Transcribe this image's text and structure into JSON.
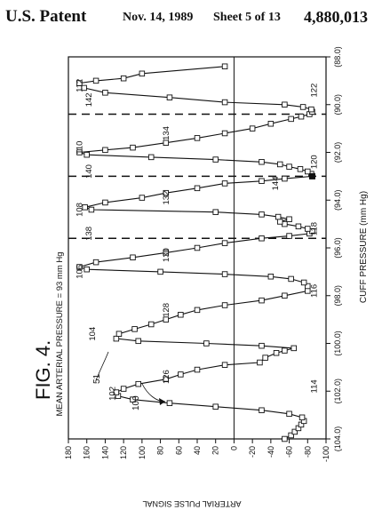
{
  "header": {
    "patent_label": "U.S. Patent",
    "date": "Nov. 14, 1989",
    "sheet": "Sheet 5 of 13",
    "patent_number": "4,880,013"
  },
  "figure": {
    "label": "FIG. 4.",
    "mean_pressure_label": "MEAN ARTERIAL PRESSURE = 93 mm Hg",
    "ref_51": "51",
    "ref_100": "100"
  },
  "chart_data": {
    "type": "line",
    "xlabel": "CUFF PRESSURE (mm Hg)",
    "ylabel": "ARTERIAL PULSE SIGNAL",
    "x_ticks": [
      "(104.0)",
      "(102.0)",
      "(100.0)",
      "(98.0)",
      "(96.0)",
      "(94.0)",
      "(92.0)",
      "(90.0)",
      "(88.0)"
    ],
    "x_tick_values": [
      104,
      102,
      100,
      98,
      96,
      94,
      92,
      90,
      88
    ],
    "y_ticks": [
      "180",
      "160",
      "140",
      "120",
      "100",
      "80",
      "60",
      "40",
      "20",
      "0",
      "-20",
      "-40",
      "-60",
      "-80",
      "-100"
    ],
    "y_tick_values": [
      180,
      160,
      140,
      120,
      100,
      80,
      60,
      40,
      20,
      0,
      -20,
      -40,
      -60,
      -80,
      -100
    ],
    "xlim": [
      104,
      88
    ],
    "ylim": [
      -100,
      180
    ],
    "dashed_lines_x": [
      95.6,
      93.0,
      90.4
    ],
    "annotations": [
      {
        "label": "102",
        "x": 102.1,
        "y": 132
      },
      {
        "label": "126",
        "x": 101.4,
        "y": 74
      },
      {
        "label": "114",
        "x": 101.8,
        "y": -87
      },
      {
        "label": "104",
        "x": 99.6,
        "y": 154
      },
      {
        "label": "128",
        "x": 98.6,
        "y": 74
      },
      {
        "label": "116",
        "x": 97.8,
        "y": -87
      },
      {
        "label": "106",
        "x": 97.0,
        "y": 168
      },
      {
        "label": "130",
        "x": 96.3,
        "y": 74
      },
      {
        "label": "118",
        "x": 95.2,
        "y": -87
      },
      {
        "label": "138",
        "x": 95.4,
        "y": 158
      },
      {
        "label": "108",
        "x": 94.4,
        "y": 168
      },
      {
        "label": "132",
        "x": 93.9,
        "y": 74
      },
      {
        "label": "144",
        "x": 93.3,
        "y": -45
      },
      {
        "label": "120",
        "x": 92.4,
        "y": -87
      },
      {
        "label": "140",
        "x": 92.8,
        "y": 158
      },
      {
        "label": "110",
        "x": 91.8,
        "y": 168
      },
      {
        "label": "134",
        "x": 91.2,
        "y": 74
      },
      {
        "label": "122",
        "x": 89.4,
        "y": -87
      },
      {
        "label": "142",
        "x": 89.8,
        "y": 158
      },
      {
        "label": "112",
        "x": 89.2,
        "y": 168
      }
    ],
    "highlight_point": {
      "x": 93.0,
      "y": -85
    },
    "series": [
      {
        "x": [
          104.0,
          103.85,
          103.7,
          103.55,
          103.4,
          103.25,
          103.1,
          102.95,
          102.8,
          102.65,
          102.5,
          102.35,
          102.2,
          102.05,
          101.9,
          101.7,
          101.5,
          101.3,
          101.1,
          100.9,
          100.8,
          100.6,
          100.4,
          100.3,
          100.2,
          100.1,
          100.0,
          99.9,
          99.8,
          99.6,
          99.4,
          99.2,
          99.0,
          98.8,
          98.6,
          98.4,
          98.2,
          98.0,
          97.8,
          97.6,
          97.45,
          97.3,
          97.2,
          97.1,
          97.0,
          96.9,
          96.8,
          96.6,
          96.4,
          96.2,
          96.0,
          95.8,
          95.6,
          95.5,
          95.4,
          95.3,
          95.2,
          95.1,
          95.0,
          94.9,
          94.8,
          94.7,
          94.6,
          94.5,
          94.4,
          94.3,
          94.1,
          93.9,
          93.7,
          93.5,
          93.3,
          93.2,
          93.1,
          93.0,
          92.9,
          92.8,
          92.7,
          92.6,
          92.5,
          92.4,
          92.3,
          92.2,
          92.1,
          92.0,
          91.9,
          91.8,
          91.6,
          91.4,
          91.2,
          91.0,
          90.8,
          90.6,
          90.5,
          90.4,
          90.3,
          90.2,
          90.1,
          90.0,
          89.9,
          89.7,
          89.5,
          89.3,
          89.1,
          89.0,
          88.9,
          88.7,
          88.4
        ],
        "values": [
          -55,
          -62,
          -66,
          -70,
          -73,
          -76,
          -74,
          -60,
          -30,
          20,
          70,
          110,
          126,
          128,
          120,
          104,
          74,
          58,
          40,
          10,
          -28,
          -34,
          -46,
          -55,
          -65,
          -30,
          30,
          104,
          128,
          125,
          108,
          90,
          74,
          58,
          40,
          10,
          -30,
          -55,
          -80,
          -80,
          -76,
          -62,
          -40,
          10,
          80,
          160,
          168,
          150,
          110,
          74,
          40,
          10,
          -30,
          -60,
          -82,
          -85,
          -80,
          -70,
          -55,
          -50,
          -60,
          -48,
          -30,
          20,
          155,
          162,
          140,
          100,
          74,
          40,
          10,
          -30,
          -55,
          -85,
          -84,
          -80,
          -72,
          -60,
          -50,
          -30,
          20,
          90,
          160,
          168,
          140,
          110,
          74,
          40,
          10,
          -20,
          -40,
          -62,
          -73,
          -82,
          -85,
          -84,
          -75,
          -55,
          10,
          70,
          140,
          163,
          168,
          150,
          120,
          100,
          10
        ]
      }
    ]
  }
}
